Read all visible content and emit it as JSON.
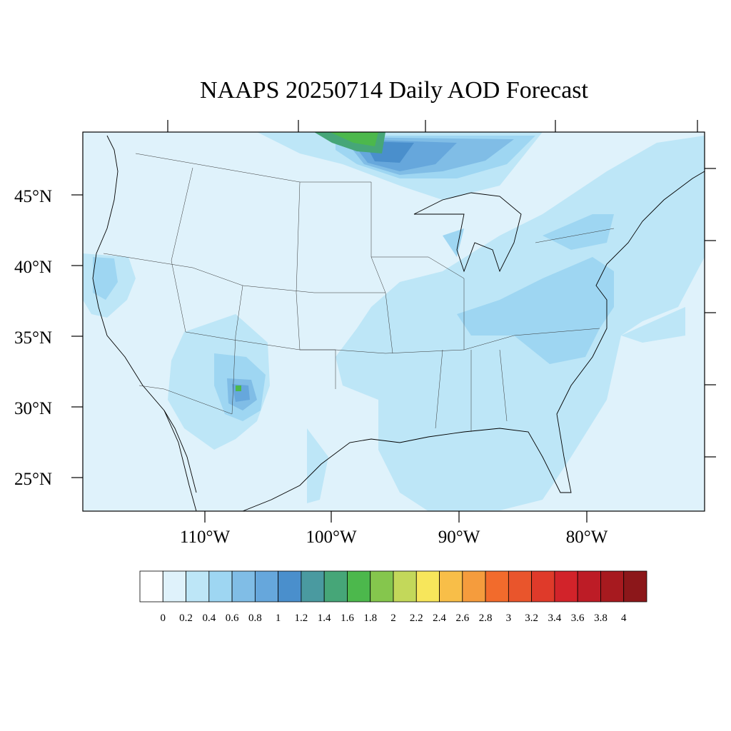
{
  "title": "NAAPS 20250714 Daily AOD Forecast",
  "lat_labels": [
    "45°N",
    "40°N",
    "35°N",
    "30°N",
    "25°N"
  ],
  "lon_labels": [
    "110°W",
    "100°W",
    "90°W",
    "80°W"
  ],
  "colorbar": {
    "labels": [
      "0",
      "0.2",
      "0.4",
      "0.6",
      "0.8",
      "1",
      "1.2",
      "1.4",
      "1.6",
      "1.8",
      "2",
      "2.2",
      "2.4",
      "2.6",
      "2.8",
      "3",
      "3.2",
      "3.4",
      "3.6",
      "3.8",
      "4"
    ],
    "colors": [
      "#ffffff",
      "#dff2fb",
      "#bde6f7",
      "#9ed6f2",
      "#80bde6",
      "#66a7dc",
      "#4a8fcc",
      "#4a9aa0",
      "#46a678",
      "#4cb84c",
      "#85c64d",
      "#c3d85a",
      "#f7e65b",
      "#f8be48",
      "#f59c3d",
      "#f26b2c",
      "#e9552c",
      "#df3a2a",
      "#d2232a",
      "#bd1c26",
      "#a71a1f",
      "#8c171a"
    ]
  },
  "background_color": "#dff2fb"
}
